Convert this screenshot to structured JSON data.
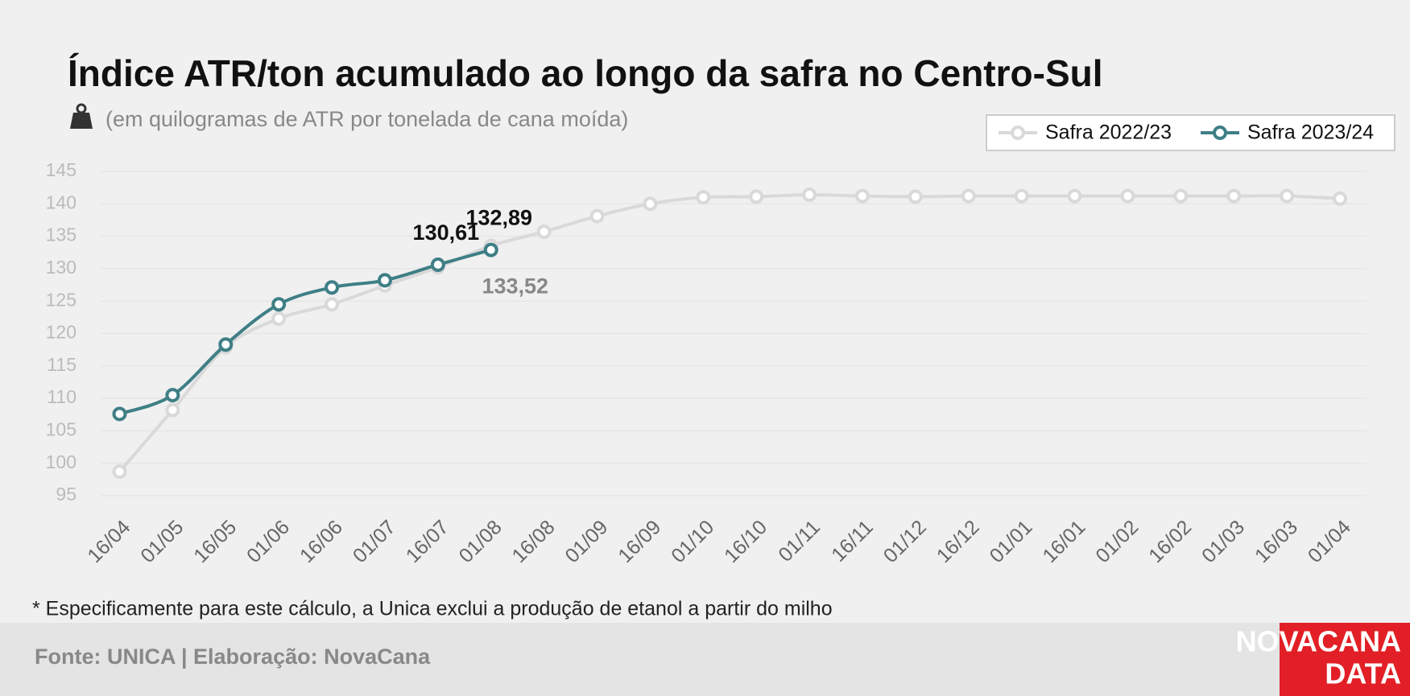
{
  "chart_data": {
    "type": "line",
    "title": "Índice ATR/ton acumulado ao longo da safra no Centro-Sul",
    "subtitle": "(em quilogramas de ATR por tonelada de cana moída)",
    "footnote": "* Especificamente para este cálculo, a Unica exclui a produção de etanol a partir do milho",
    "source": "Fonte: UNICA | Elaboração: NovaCana",
    "logo": [
      "NOVACANA",
      "DATA"
    ],
    "categories": [
      "16/04",
      "01/05",
      "16/05",
      "01/06",
      "16/06",
      "01/07",
      "16/07",
      "01/08",
      "16/08",
      "01/09",
      "16/09",
      "01/10",
      "16/10",
      "01/11",
      "16/11",
      "01/12",
      "16/12",
      "01/01",
      "16/01",
      "01/02",
      "16/02",
      "01/03",
      "16/03",
      "01/04"
    ],
    "series": [
      {
        "name": "Safra 2022/23",
        "color": "#d9d9d9",
        "values": [
          98.7,
          108.2,
          117.9,
          122.3,
          124.5,
          127.4,
          130.2,
          133.52,
          135.7,
          138.1,
          140.0,
          141.0,
          141.1,
          141.4,
          141.2,
          141.1,
          141.2,
          141.2,
          141.2,
          141.2,
          141.2,
          141.2,
          141.2,
          140.8
        ],
        "value_labels": [
          null,
          null,
          null,
          null,
          null,
          null,
          null,
          "133,52",
          null,
          null,
          null,
          null,
          null,
          null,
          null,
          null,
          null,
          null,
          null,
          null,
          null,
          null,
          null,
          null
        ]
      },
      {
        "name": "Safra 2023/24",
        "color": "#3f7f86",
        "values": [
          107.6,
          110.5,
          118.3,
          124.5,
          127.1,
          128.2,
          130.61,
          132.89,
          null,
          null,
          null,
          null,
          null,
          null,
          null,
          null,
          null,
          null,
          null,
          null,
          null,
          null,
          null,
          null
        ],
        "value_labels": [
          null,
          null,
          null,
          null,
          null,
          null,
          "130,61",
          "132,89",
          null,
          null,
          null,
          null,
          null,
          null,
          null,
          null,
          null,
          null,
          null,
          null,
          null,
          null,
          null,
          null
        ]
      }
    ],
    "ylim": [
      95,
      145
    ],
    "yticks": [
      95,
      100,
      105,
      110,
      115,
      120,
      125,
      130,
      135,
      140,
      145
    ],
    "grid": true,
    "legend": "top-right"
  }
}
